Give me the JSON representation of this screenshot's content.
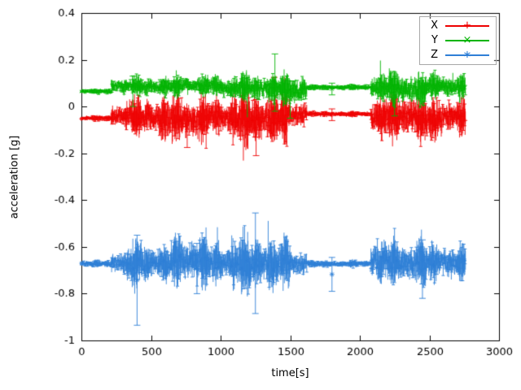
{
  "chart_data": {
    "type": "line",
    "style": "errorbars-with-points",
    "title": "",
    "xlabel": "time[s]",
    "ylabel": "acceleration [g]",
    "xlim": [
      0,
      3000
    ],
    "ylim": [
      -1,
      0.4
    ],
    "xticks": [
      "0",
      "500",
      "1000",
      "1500",
      "2000",
      "2500",
      "3000"
    ],
    "yticks": [
      "-1",
      "-0.8",
      "-0.6",
      "-0.4",
      "-0.2",
      "0",
      "0.2",
      "0.4"
    ],
    "grid": false,
    "legend_position": "top-right",
    "data_t_range": [
      0,
      2760
    ],
    "series": [
      {
        "name": "X",
        "color": "#ee0000",
        "marker": "plus",
        "segments": [
          {
            "t0": 0,
            "t1": 215,
            "base": -0.05,
            "amp": 0.008
          },
          {
            "t0": 215,
            "t1": 320,
            "base": -0.042,
            "amp": 0.035
          },
          {
            "t0": 320,
            "t1": 520,
            "base": -0.045,
            "amp": 0.055
          },
          {
            "t0": 520,
            "t1": 700,
            "base": -0.05,
            "amp": 0.065
          },
          {
            "t0": 700,
            "t1": 900,
            "base": -0.055,
            "amp": 0.07
          },
          {
            "t0": 900,
            "t1": 1080,
            "base": -0.045,
            "amp": 0.055
          },
          {
            "t0": 1080,
            "t1": 1300,
            "base": -0.055,
            "amp": 0.08
          },
          {
            "t0": 1300,
            "t1": 1480,
            "base": -0.05,
            "amp": 0.075
          },
          {
            "t0": 1480,
            "t1": 1620,
            "base": -0.035,
            "amp": 0.045
          },
          {
            "t0": 1620,
            "t1": 2080,
            "base": -0.032,
            "amp": 0.008
          },
          {
            "t0": 2080,
            "t1": 2180,
            "base": -0.05,
            "amp": 0.06
          },
          {
            "t0": 2180,
            "t1": 2420,
            "base": -0.045,
            "amp": 0.07
          },
          {
            "t0": 2420,
            "t1": 2600,
            "base": -0.05,
            "amp": 0.065
          },
          {
            "t0": 2600,
            "t1": 2760,
            "base": -0.04,
            "amp": 0.05
          }
        ],
        "spikes": [
          {
            "t": 760,
            "lo": -0.175,
            "hi": -0.02
          },
          {
            "t": 1255,
            "lo": -0.21,
            "hi": 0.03
          },
          {
            "t": 1385,
            "lo": -0.07,
            "hi": 0.125
          },
          {
            "t": 1800,
            "lo": -0.06,
            "hi": -0.01
          }
        ]
      },
      {
        "name": "Y",
        "color": "#00b400",
        "marker": "cross",
        "segments": [
          {
            "t0": 0,
            "t1": 215,
            "base": 0.065,
            "amp": 0.008
          },
          {
            "t0": 215,
            "t1": 420,
            "base": 0.09,
            "amp": 0.025
          },
          {
            "t0": 420,
            "t1": 700,
            "base": 0.085,
            "amp": 0.03
          },
          {
            "t0": 700,
            "t1": 1000,
            "base": 0.09,
            "amp": 0.03
          },
          {
            "t0": 1000,
            "t1": 1100,
            "base": 0.075,
            "amp": 0.035
          },
          {
            "t0": 1100,
            "t1": 1300,
            "base": 0.08,
            "amp": 0.04
          },
          {
            "t0": 1300,
            "t1": 1480,
            "base": 0.075,
            "amp": 0.045
          },
          {
            "t0": 1480,
            "t1": 1620,
            "base": 0.07,
            "amp": 0.05
          },
          {
            "t0": 1620,
            "t1": 2080,
            "base": 0.082,
            "amp": 0.008
          },
          {
            "t0": 2080,
            "t1": 2300,
            "base": 0.08,
            "amp": 0.045
          },
          {
            "t0": 2300,
            "t1": 2480,
            "base": 0.075,
            "amp": 0.05
          },
          {
            "t0": 2480,
            "t1": 2620,
            "base": 0.09,
            "amp": 0.04
          },
          {
            "t0": 2620,
            "t1": 2760,
            "base": 0.085,
            "amp": 0.035
          }
        ],
        "spikes": [
          {
            "t": 370,
            "lo": 0.0,
            "hi": 0.13
          },
          {
            "t": 1390,
            "lo": -0.02,
            "hi": 0.225
          },
          {
            "t": 1500,
            "lo": -0.05,
            "hi": 0.11
          },
          {
            "t": 1800,
            "lo": 0.05,
            "hi": 0.1
          },
          {
            "t": 2250,
            "lo": -0.04,
            "hi": 0.12
          }
        ]
      },
      {
        "name": "Z",
        "color": "#2f7fd6",
        "marker": "star",
        "segments": [
          {
            "t0": 0,
            "t1": 215,
            "base": -0.672,
            "amp": 0.01
          },
          {
            "t0": 215,
            "t1": 330,
            "base": -0.67,
            "amp": 0.035
          },
          {
            "t0": 330,
            "t1": 480,
            "base": -0.67,
            "amp": 0.07
          },
          {
            "t0": 480,
            "t1": 640,
            "base": -0.67,
            "amp": 0.055
          },
          {
            "t0": 640,
            "t1": 900,
            "base": -0.66,
            "amp": 0.075
          },
          {
            "t0": 900,
            "t1": 1080,
            "base": -0.67,
            "amp": 0.06
          },
          {
            "t0": 1080,
            "t1": 1350,
            "base": -0.67,
            "amp": 0.085
          },
          {
            "t0": 1350,
            "t1": 1500,
            "base": -0.67,
            "amp": 0.075
          },
          {
            "t0": 1500,
            "t1": 1620,
            "base": -0.675,
            "amp": 0.045
          },
          {
            "t0": 1620,
            "t1": 2080,
            "base": -0.672,
            "amp": 0.01
          },
          {
            "t0": 2080,
            "t1": 2300,
            "base": -0.665,
            "amp": 0.065
          },
          {
            "t0": 2300,
            "t1": 2480,
            "base": -0.67,
            "amp": 0.07
          },
          {
            "t0": 2480,
            "t1": 2620,
            "base": -0.665,
            "amp": 0.06
          },
          {
            "t0": 2620,
            "t1": 2760,
            "base": -0.67,
            "amp": 0.05
          }
        ],
        "spikes": [
          {
            "t": 400,
            "lo": -0.935,
            "hi": -0.55
          },
          {
            "t": 830,
            "lo": -0.8,
            "hi": -0.585
          },
          {
            "t": 1250,
            "lo": -0.885,
            "hi": -0.455
          },
          {
            "t": 1800,
            "lo": -0.79,
            "hi": -0.645
          },
          {
            "t": 2450,
            "lo": -0.82,
            "hi": -0.57
          }
        ]
      }
    ]
  }
}
